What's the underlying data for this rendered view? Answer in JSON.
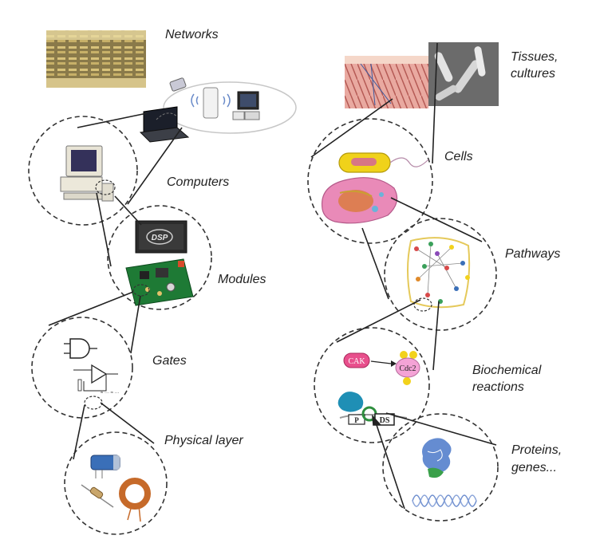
{
  "labels": {
    "networks": "Networks",
    "computers": "Computers",
    "modules": "Modules",
    "gates": "Gates",
    "physical_layer": "Physical layer",
    "tissues_line1": "Tissues,",
    "tissues_line2": "cultures",
    "cells": "Cells",
    "pathways": "Pathways",
    "biochem_line1": "Biochemical",
    "biochem_line2": "reactions",
    "proteins_line1": "Proteins,",
    "proteins_line2": "genes..."
  },
  "inset_text": {
    "dsp": "DSP",
    "cak": "CAK",
    "cdc2": "Cdc2",
    "p": "P",
    "ds": "DS"
  },
  "colors": {
    "circle_stroke": "#333333",
    "connector": "#222222",
    "cak_pill": "#e84f8c",
    "cdc2_blob": "#f4a3d6",
    "phospho": "#f2d21c",
    "kinase_blob": "#1f8fb5",
    "ring": "#2f8f3f",
    "helix": "#6f8fcf",
    "pcb": "#1e7a35",
    "cell_body": "#e98ab8",
    "bacterium": "#f0d21a"
  }
}
